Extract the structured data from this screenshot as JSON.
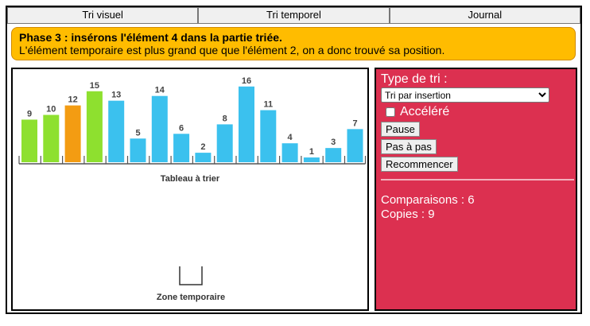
{
  "tabs": [
    {
      "label": "Tri visuel"
    },
    {
      "label": "Tri temporel"
    },
    {
      "label": "Journal"
    }
  ],
  "banner": {
    "title": "Phase 3 : insérons l'élément 4 dans la partie triée.",
    "text": "L'élément temporaire est plus grand que que l'élément 2, on a donc trouvé sa position."
  },
  "array": {
    "caption": "Tableau à trier",
    "bars": [
      {
        "value": 9,
        "color": "#8ee02f"
      },
      {
        "value": 10,
        "color": "#8ee02f"
      },
      {
        "value": 12,
        "color": "#f39c12"
      },
      {
        "value": 15,
        "color": "#8ee02f"
      },
      {
        "value": 13,
        "color": "#3bc1ee"
      },
      {
        "value": 5,
        "color": "#3bc1ee"
      },
      {
        "value": 14,
        "color": "#3bc1ee"
      },
      {
        "value": 6,
        "color": "#3bc1ee"
      },
      {
        "value": 2,
        "color": "#3bc1ee"
      },
      {
        "value": 8,
        "color": "#3bc1ee"
      },
      {
        "value": 16,
        "color": "#3bc1ee"
      },
      {
        "value": 11,
        "color": "#3bc1ee"
      },
      {
        "value": 4,
        "color": "#3bc1ee"
      },
      {
        "value": 1,
        "color": "#3bc1ee"
      },
      {
        "value": 3,
        "color": "#3bc1ee"
      },
      {
        "value": 7,
        "color": "#3bc1ee"
      }
    ]
  },
  "temp_zone": {
    "caption": "Zone temporaire"
  },
  "controls": {
    "algo_label": "Type de tri :",
    "algo_selected": "Tri par insertion",
    "fast_label": "Accéléré",
    "fast_checked": false,
    "pause_label": "Pause",
    "step_label": "Pas à pas",
    "restart_label": "Recommencer"
  },
  "stats": {
    "comparisons": "Comparaisons : 6",
    "copies": "Copies : 9"
  },
  "colors": {
    "panel": "#dc3050",
    "banner": "#ffbc00",
    "sorted": "#8ee02f",
    "current": "#f39c12",
    "unsorted": "#3bc1ee"
  }
}
